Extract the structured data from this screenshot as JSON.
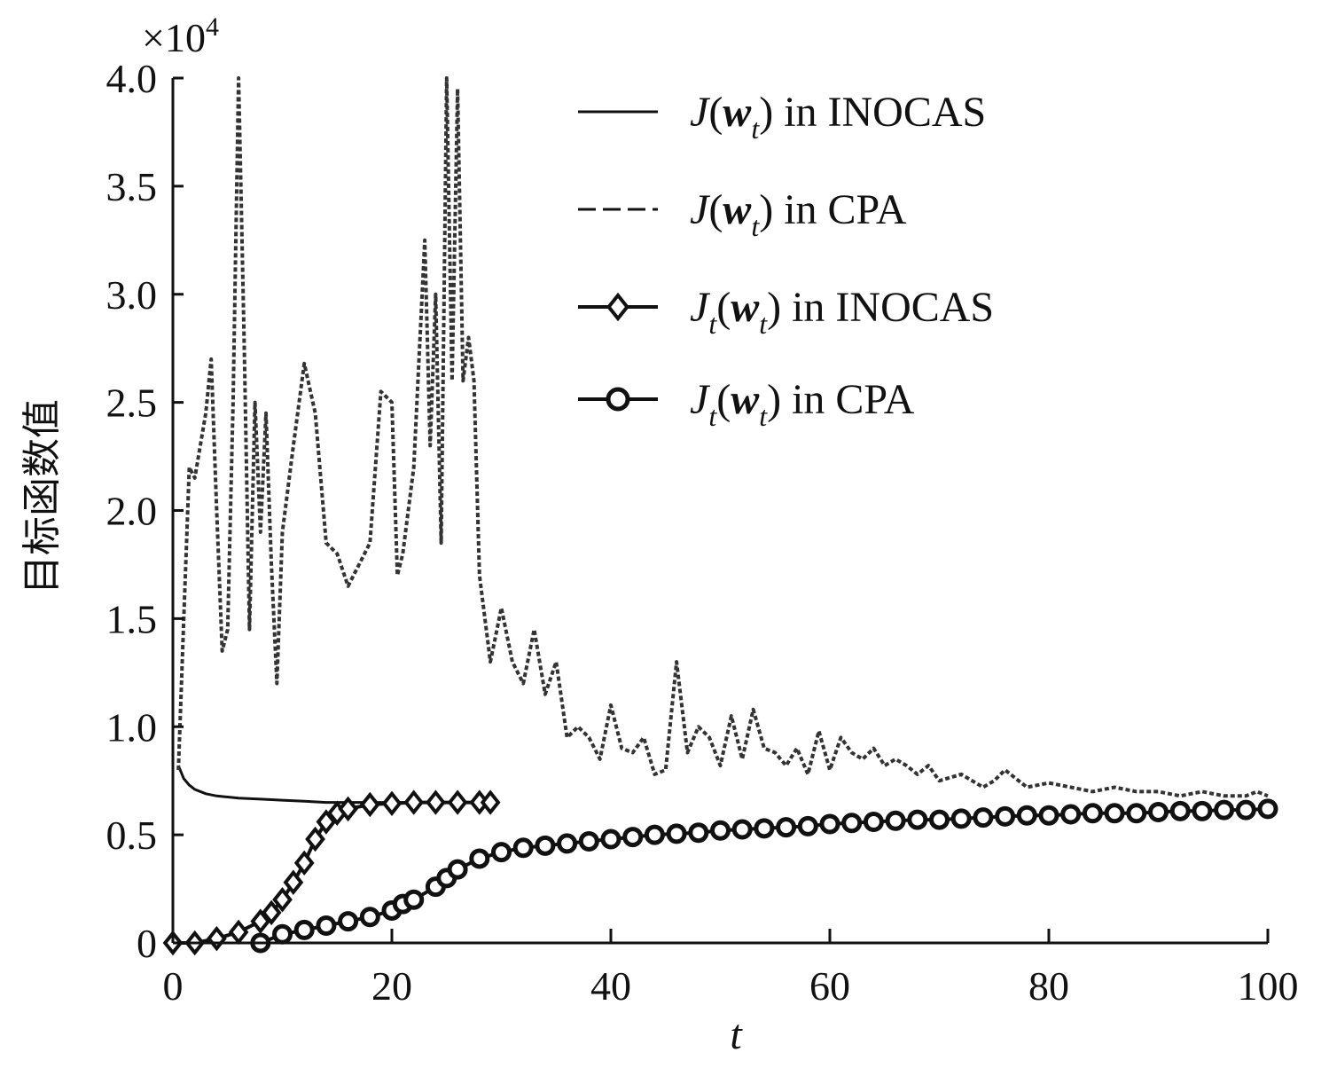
{
  "chart_data": {
    "type": "line",
    "xlabel": "t",
    "ylabel": "目标函数值",
    "multiplier_label": "×10",
    "multiplier_exp": "4",
    "xlim": [
      0,
      100
    ],
    "ylim": [
      0,
      4.0
    ],
    "xticks": [
      0,
      20,
      40,
      60,
      80,
      100
    ],
    "xtick_labels": [
      "0",
      "20",
      "40",
      "60",
      "80",
      "100"
    ],
    "yticks": [
      0,
      0.5,
      1.0,
      1.5,
      2.0,
      2.5,
      3.0,
      3.5,
      4.0
    ],
    "ytick_labels": [
      "0",
      "0.5",
      "1.0",
      "1.5",
      "2.0",
      "2.5",
      "3.0",
      "3.5",
      "4.0"
    ],
    "grid": false,
    "legend_position": "top-right",
    "legend": [
      {
        "func": "J",
        "sub": "",
        "arg_sub": "t",
        "suffix": "in INOCAS",
        "style": "solid"
      },
      {
        "func": "J",
        "sub": "",
        "arg_sub": "t",
        "suffix": "in CPA",
        "style": "dashed"
      },
      {
        "func": "J",
        "sub": "t",
        "arg_sub": "t",
        "suffix": "in INOCAS",
        "style": "diamond"
      },
      {
        "func": "J",
        "sub": "t",
        "arg_sub": "t",
        "suffix": "in CPA",
        "style": "circle"
      }
    ],
    "series": [
      {
        "style": "solid",
        "x": [
          0.5,
          1,
          1.5,
          2,
          3,
          4,
          5,
          6,
          8,
          10,
          12,
          14,
          16,
          18,
          20,
          22,
          25,
          28,
          29
        ],
        "y": [
          0.82,
          0.76,
          0.73,
          0.71,
          0.69,
          0.68,
          0.675,
          0.67,
          0.665,
          0.66,
          0.655,
          0.65,
          0.65,
          0.65,
          0.65,
          0.65,
          0.65,
          0.65,
          0.65
        ]
      },
      {
        "style": "dashed",
        "x": [
          0.5,
          1,
          1.5,
          2,
          2.5,
          3,
          3.5,
          4,
          4.5,
          5,
          5.5,
          6,
          6.5,
          7,
          7.5,
          8,
          8.5,
          9,
          9.5,
          10,
          11,
          12,
          13,
          14,
          15,
          16,
          17,
          18,
          19,
          20,
          20.5,
          21,
          22,
          23,
          23.5,
          24,
          24.5,
          25,
          25.5,
          26,
          26.5,
          27,
          27.5,
          28,
          29,
          30,
          31,
          32,
          33,
          34,
          35,
          36,
          37,
          38,
          39,
          40,
          41,
          42,
          43,
          44,
          45,
          46,
          47,
          48,
          49,
          50,
          51,
          52,
          53,
          54,
          55,
          56,
          57,
          58,
          59,
          60,
          61,
          62,
          63,
          64,
          65,
          66,
          67,
          68,
          69,
          70,
          72,
          74,
          75,
          76,
          78,
          80,
          82,
          84,
          86,
          88,
          90,
          92,
          94,
          96,
          98,
          99,
          100
        ],
        "y": [
          0.8,
          1.5,
          2.2,
          2.15,
          2.3,
          2.45,
          2.7,
          2.0,
          1.35,
          1.45,
          2.5,
          4.0,
          2.8,
          1.45,
          2.5,
          1.9,
          2.45,
          1.75,
          1.2,
          1.9,
          2.3,
          2.68,
          2.45,
          1.85,
          1.8,
          1.65,
          1.75,
          1.85,
          2.55,
          2.5,
          1.7,
          1.8,
          2.2,
          3.25,
          2.3,
          3.0,
          1.85,
          4.0,
          2.6,
          3.95,
          2.6,
          2.8,
          2.6,
          1.7,
          1.3,
          1.55,
          1.3,
          1.2,
          1.45,
          1.15,
          1.3,
          0.95,
          1.0,
          0.95,
          0.85,
          1.1,
          0.9,
          0.88,
          0.95,
          0.78,
          0.8,
          1.3,
          0.88,
          1.0,
          0.95,
          0.82,
          1.05,
          0.85,
          1.08,
          0.9,
          0.88,
          0.82,
          0.9,
          0.78,
          0.98,
          0.8,
          0.95,
          0.88,
          0.85,
          0.9,
          0.82,
          0.85,
          0.82,
          0.78,
          0.82,
          0.75,
          0.78,
          0.72,
          0.75,
          0.8,
          0.72,
          0.74,
          0.72,
          0.7,
          0.72,
          0.7,
          0.7,
          0.68,
          0.7,
          0.68,
          0.68,
          0.7,
          0.68
        ]
      },
      {
        "style": "diamond",
        "x": [
          0,
          2,
          4,
          6,
          8,
          9,
          10,
          11,
          12,
          13,
          14,
          15,
          16,
          18,
          20,
          22,
          24,
          26,
          28,
          29
        ],
        "y": [
          0,
          0.0,
          0.02,
          0.05,
          0.1,
          0.14,
          0.2,
          0.28,
          0.37,
          0.48,
          0.56,
          0.6,
          0.62,
          0.64,
          0.645,
          0.65,
          0.65,
          0.65,
          0.65,
          0.65
        ]
      },
      {
        "style": "circle",
        "x": [
          8,
          10,
          12,
          14,
          16,
          18,
          20,
          21,
          22,
          24,
          25,
          26,
          28,
          30,
          32,
          34,
          36,
          38,
          40,
          42,
          44,
          46,
          48,
          50,
          52,
          54,
          56,
          58,
          60,
          62,
          64,
          66,
          68,
          70,
          72,
          74,
          76,
          78,
          80,
          82,
          84,
          86,
          88,
          90,
          92,
          94,
          96,
          98,
          100
        ],
        "y": [
          0,
          0.04,
          0.06,
          0.08,
          0.1,
          0.12,
          0.15,
          0.18,
          0.2,
          0.26,
          0.3,
          0.34,
          0.39,
          0.42,
          0.44,
          0.45,
          0.46,
          0.47,
          0.48,
          0.49,
          0.5,
          0.505,
          0.51,
          0.52,
          0.525,
          0.53,
          0.535,
          0.54,
          0.55,
          0.555,
          0.56,
          0.565,
          0.57,
          0.57,
          0.575,
          0.58,
          0.585,
          0.59,
          0.59,
          0.595,
          0.6,
          0.6,
          0.6,
          0.605,
          0.61,
          0.61,
          0.615,
          0.615,
          0.62
        ]
      }
    ]
  }
}
